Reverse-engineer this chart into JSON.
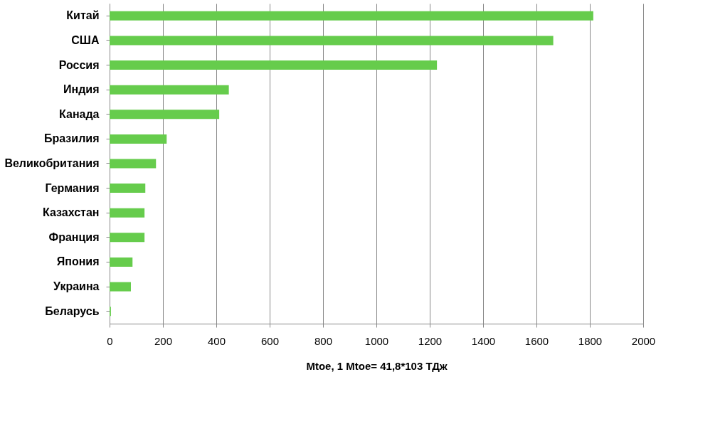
{
  "chart_data": {
    "type": "bar",
    "orientation": "horizontal",
    "categories": [
      "Китай",
      "США",
      "Россия",
      "Индия",
      "Канада",
      "Бразилия",
      "Великобритания",
      "Германия",
      "Казахстан",
      "Франция",
      "Япония",
      "Украина",
      "Беларусь"
    ],
    "values": [
      1813,
      1663,
      1227,
      447,
      411,
      214,
      174,
      134,
      131,
      131,
      86,
      80,
      5
    ],
    "color": "#66cc4c",
    "xlabel": "Mtoe, 1 Mtoe= 41,8*103 ТДж",
    "xlim": [
      0,
      2000
    ],
    "xticks": [
      0,
      200,
      400,
      600,
      800,
      1000,
      1200,
      1400,
      1600,
      1800,
      2000
    ],
    "grid": "x"
  }
}
